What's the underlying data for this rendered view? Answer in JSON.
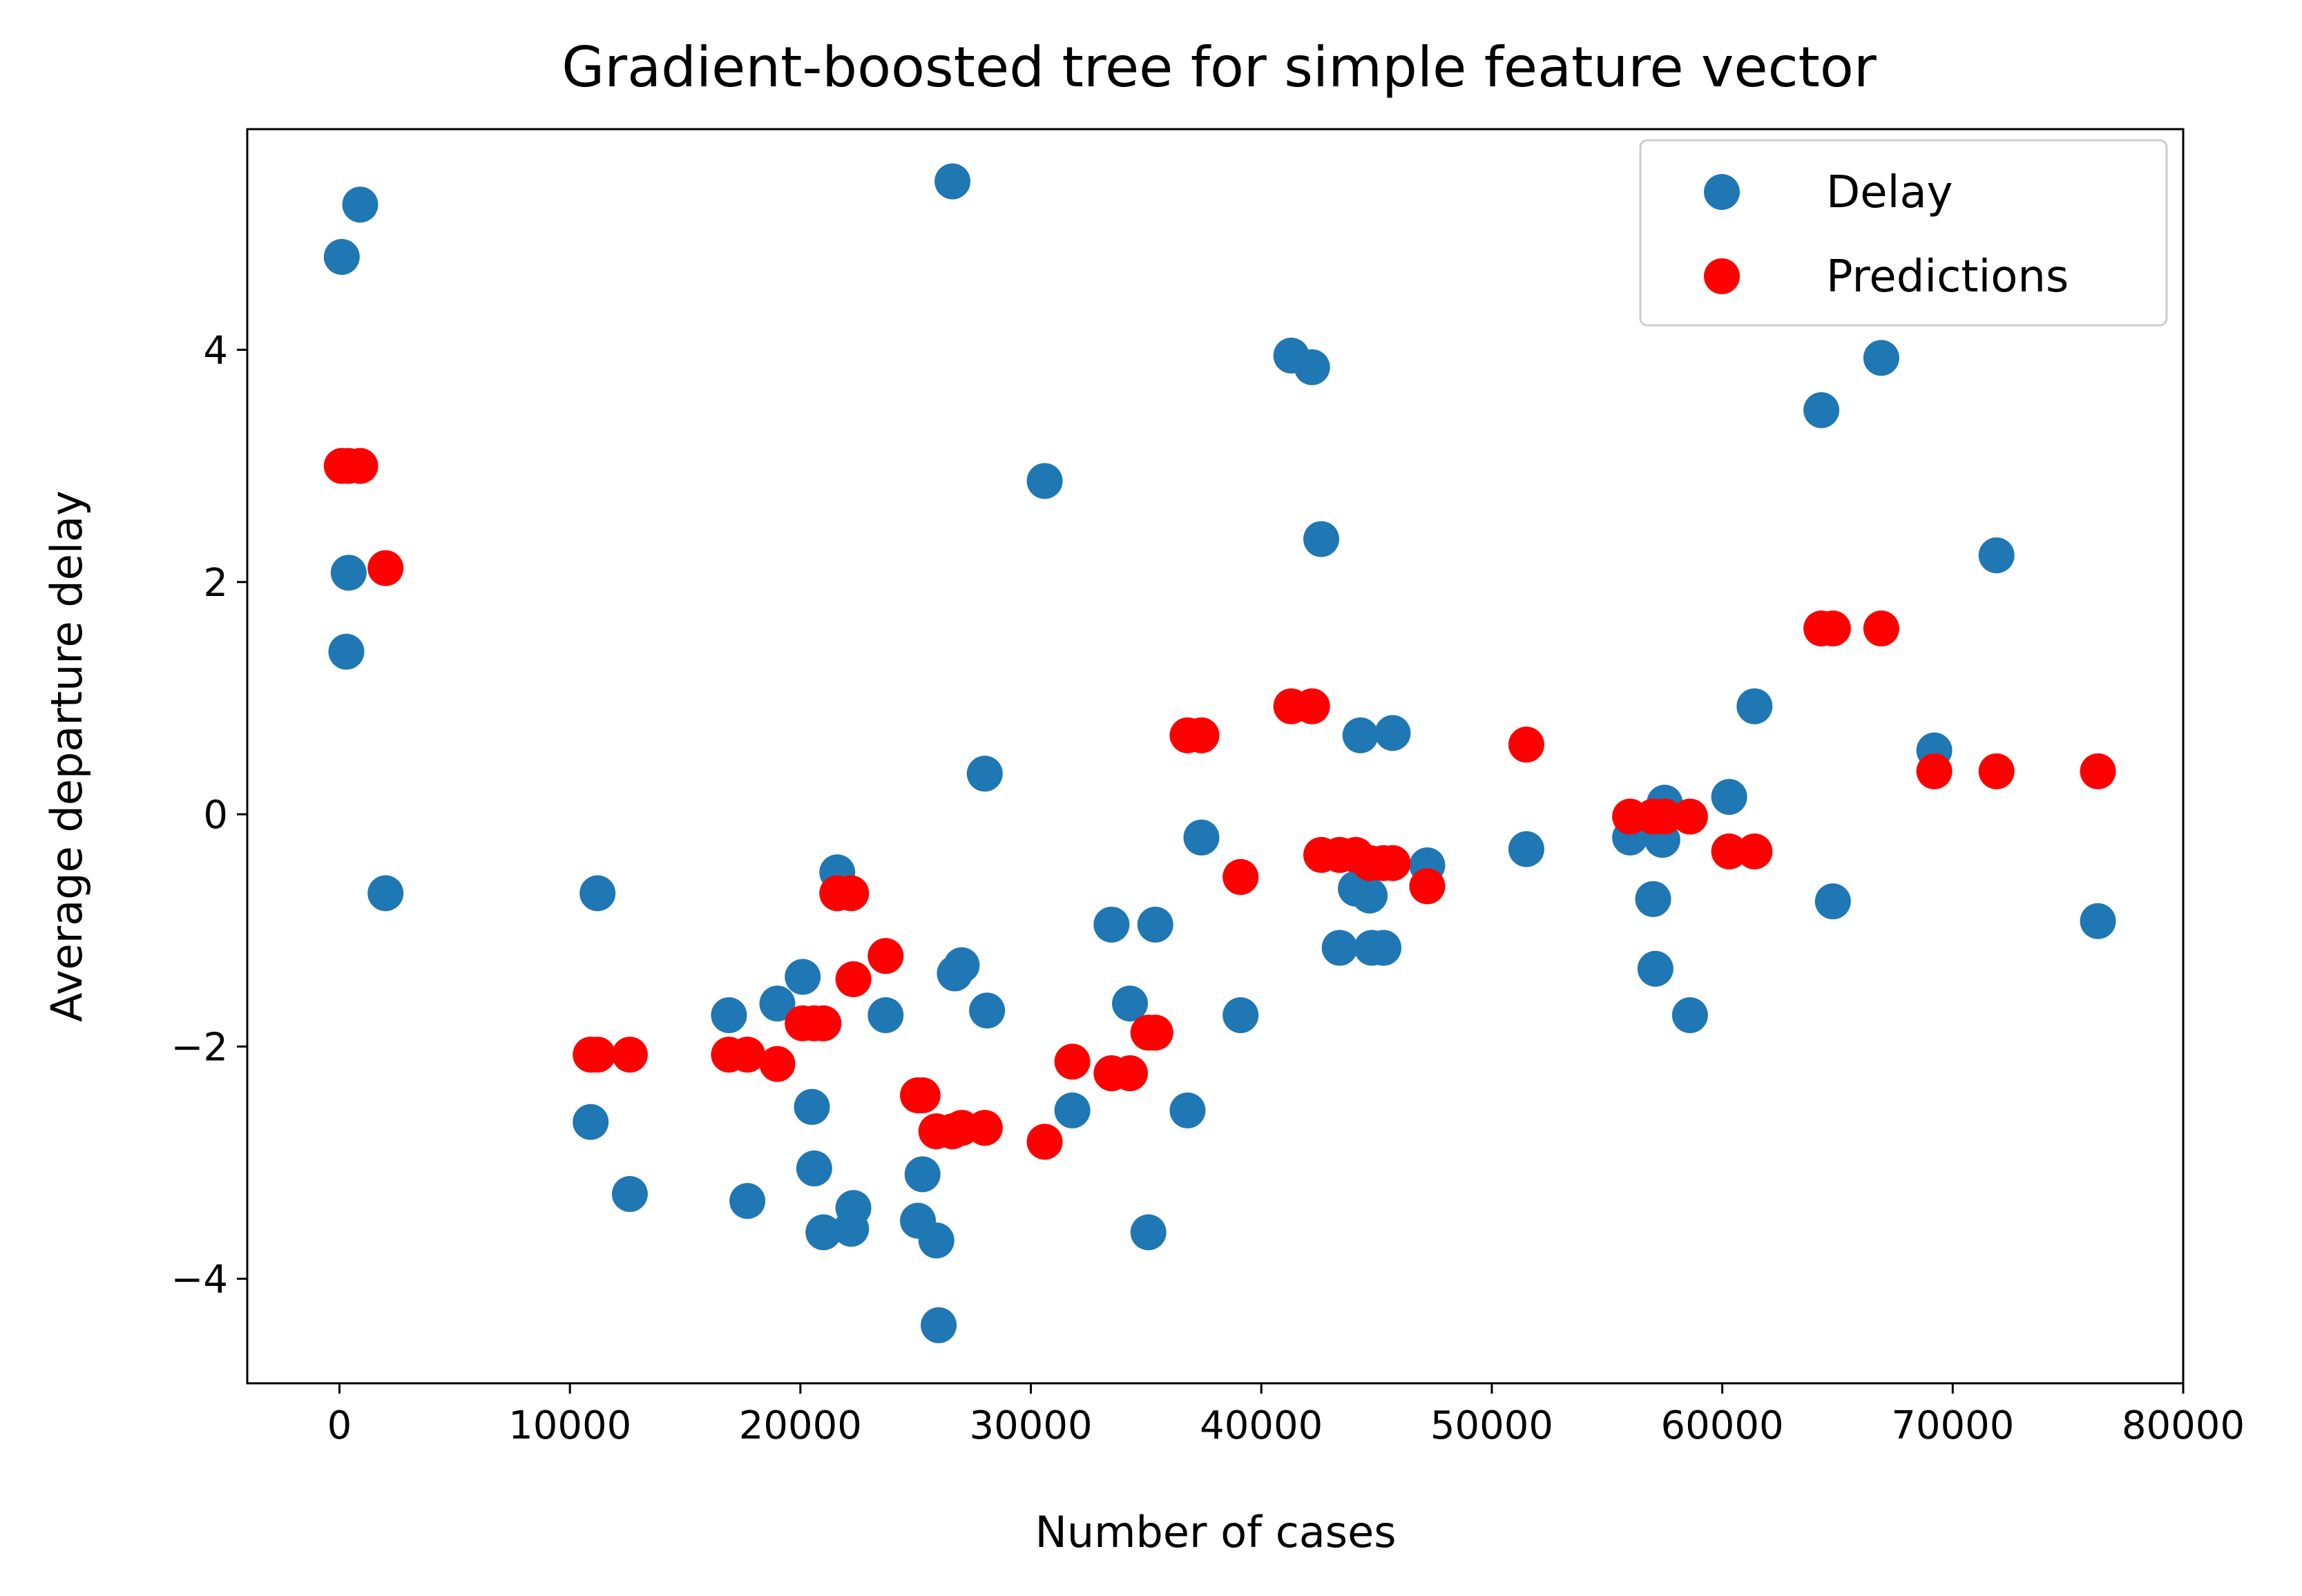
{
  "chart_data": {
    "type": "scatter",
    "title": "Gradient-boosted tree for simple feature vector",
    "xlabel": "Number of cases",
    "ylabel": "Average departure delay",
    "xlim": [
      -4000,
      80000
    ],
    "ylim": [
      -4.9,
      5.9
    ],
    "xticks": [
      0,
      10000,
      20000,
      30000,
      40000,
      50000,
      60000,
      70000,
      80000
    ],
    "xtick_labels": [
      "0",
      "10000",
      "20000",
      "30000",
      "40000",
      "50000",
      "60000",
      "70000",
      "80000"
    ],
    "yticks": [
      -4,
      -2,
      0,
      2,
      4
    ],
    "ytick_labels": [
      "−4",
      "−2",
      "0",
      "2",
      "4"
    ],
    "grid": false,
    "legend": "top-right",
    "series": [
      {
        "name": "Delay",
        "color": "#1f77b4",
        "points": [
          [
            100,
            4.8
          ],
          [
            900,
            5.25
          ],
          [
            400,
            2.08
          ],
          [
            300,
            1.4
          ],
          [
            2000,
            -0.68
          ],
          [
            10900,
            -2.65
          ],
          [
            11200,
            -0.68
          ],
          [
            12600,
            -3.27
          ],
          [
            16900,
            -1.73
          ],
          [
            17700,
            -3.33
          ],
          [
            19000,
            -1.63
          ],
          [
            20100,
            -1.4
          ],
          [
            20500,
            -2.52
          ],
          [
            20600,
            -3.05
          ],
          [
            21000,
            -3.6
          ],
          [
            21600,
            -0.5
          ],
          [
            22200,
            -3.57
          ],
          [
            22300,
            -3.39
          ],
          [
            23700,
            -1.73
          ],
          [
            25100,
            -3.5
          ],
          [
            25300,
            -3.1
          ],
          [
            25900,
            -3.67
          ],
          [
            26000,
            -4.4
          ],
          [
            26600,
            5.45
          ],
          [
            26700,
            -1.37
          ],
          [
            27000,
            -1.3
          ],
          [
            28000,
            0.35
          ],
          [
            28100,
            -1.69
          ],
          [
            30600,
            2.87
          ],
          [
            31800,
            -2.55
          ],
          [
            33500,
            -0.95
          ],
          [
            34300,
            -1.63
          ],
          [
            35100,
            -3.6
          ],
          [
            35400,
            -0.95
          ],
          [
            36800,
            -2.55
          ],
          [
            37400,
            -0.2
          ],
          [
            39100,
            -1.73
          ],
          [
            41300,
            3.95
          ],
          [
            42200,
            3.85
          ],
          [
            42600,
            2.37
          ],
          [
            43400,
            -1.15
          ],
          [
            44100,
            -0.64
          ],
          [
            44300,
            0.68
          ],
          [
            44700,
            -0.7
          ],
          [
            44800,
            -1.15
          ],
          [
            45300,
            -1.15
          ],
          [
            45700,
            0.7
          ],
          [
            47200,
            -0.44
          ],
          [
            51500,
            -0.3
          ],
          [
            56000,
            -0.2
          ],
          [
            57000,
            -0.73
          ],
          [
            57100,
            -1.33
          ],
          [
            57400,
            -0.22
          ],
          [
            57500,
            0.1
          ],
          [
            58600,
            -1.73
          ],
          [
            60300,
            0.15
          ],
          [
            61400,
            0.93
          ],
          [
            64300,
            3.48
          ],
          [
            64800,
            -0.75
          ],
          [
            66900,
            3.93
          ],
          [
            69200,
            0.55
          ],
          [
            71900,
            2.23
          ],
          [
            76300,
            -0.92
          ]
        ]
      },
      {
        "name": "Predictions",
        "color": "#ff0000",
        "points": [
          [
            100,
            3.0
          ],
          [
            400,
            3.0
          ],
          [
            900,
            3.0
          ],
          [
            2000,
            2.12
          ],
          [
            10900,
            -2.07
          ],
          [
            11200,
            -2.07
          ],
          [
            12600,
            -2.07
          ],
          [
            16900,
            -2.07
          ],
          [
            17700,
            -2.07
          ],
          [
            19000,
            -2.15
          ],
          [
            20100,
            -1.8
          ],
          [
            20600,
            -1.8
          ],
          [
            21000,
            -1.8
          ],
          [
            21600,
            -0.68
          ],
          [
            22200,
            -0.68
          ],
          [
            22300,
            -1.42
          ],
          [
            23700,
            -1.22
          ],
          [
            25100,
            -2.42
          ],
          [
            25300,
            -2.42
          ],
          [
            25900,
            -2.73
          ],
          [
            26600,
            -2.73
          ],
          [
            27000,
            -2.7
          ],
          [
            28000,
            -2.7
          ],
          [
            30600,
            -2.82
          ],
          [
            31800,
            -2.13
          ],
          [
            33500,
            -2.23
          ],
          [
            34300,
            -2.23
          ],
          [
            35100,
            -1.88
          ],
          [
            35400,
            -1.88
          ],
          [
            36800,
            0.68
          ],
          [
            37400,
            0.68
          ],
          [
            39100,
            -0.54
          ],
          [
            41300,
            0.93
          ],
          [
            42200,
            0.93
          ],
          [
            42600,
            -0.35
          ],
          [
            43400,
            -0.35
          ],
          [
            44100,
            -0.35
          ],
          [
            44700,
            -0.42
          ],
          [
            45300,
            -0.42
          ],
          [
            45700,
            -0.42
          ],
          [
            47200,
            -0.62
          ],
          [
            51500,
            0.6
          ],
          [
            56000,
            -0.02
          ],
          [
            57000,
            -0.02
          ],
          [
            57500,
            -0.02
          ],
          [
            58600,
            -0.02
          ],
          [
            60300,
            -0.32
          ],
          [
            61400,
            -0.32
          ],
          [
            64300,
            1.6
          ],
          [
            64800,
            1.6
          ],
          [
            66900,
            1.6
          ],
          [
            69200,
            0.37
          ],
          [
            71900,
            0.37
          ],
          [
            76300,
            0.37
          ]
        ]
      }
    ]
  }
}
